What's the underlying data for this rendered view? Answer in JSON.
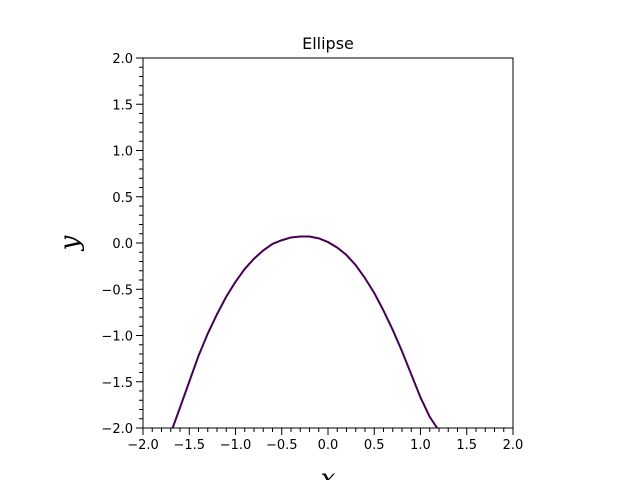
{
  "chart_data": {
    "type": "line",
    "title": "Ellipse",
    "xlabel": "x",
    "ylabel": "y",
    "xlim": [
      -2.0,
      2.0
    ],
    "ylim": [
      -2.0,
      2.0
    ],
    "x_ticks": [
      "−2.0",
      "−1.5",
      "−1.0",
      "−0.5",
      "0.0",
      "0.5",
      "1.0",
      "1.5",
      "2.0"
    ],
    "y_ticks": [
      "−2.0",
      "−1.5",
      "−1.0",
      "−0.5",
      "0.0",
      "0.5",
      "1.0",
      "1.5",
      "2.0"
    ],
    "grid": false,
    "series": [
      {
        "color": "#440154",
        "x": [
          -1.68,
          -1.6,
          -1.5,
          -1.4,
          -1.3,
          -1.2,
          -1.1,
          -1.0,
          -0.9,
          -0.8,
          -0.7,
          -0.6,
          -0.5,
          -0.4,
          -0.3,
          -0.25,
          -0.2,
          -0.1,
          0.0,
          0.1,
          0.2,
          0.3,
          0.4,
          0.5,
          0.6,
          0.7,
          0.8,
          0.9,
          1.0,
          1.1,
          1.18
        ],
        "y": [
          -2.0,
          -1.78,
          -1.5,
          -1.22,
          -0.98,
          -0.77,
          -0.58,
          -0.42,
          -0.28,
          -0.17,
          -0.08,
          -0.01,
          0.03,
          0.06,
          0.07,
          0.07,
          0.07,
          0.05,
          0.01,
          -0.05,
          -0.13,
          -0.24,
          -0.38,
          -0.54,
          -0.73,
          -0.94,
          -1.17,
          -1.42,
          -1.67,
          -1.88,
          -2.0
        ]
      }
    ]
  }
}
